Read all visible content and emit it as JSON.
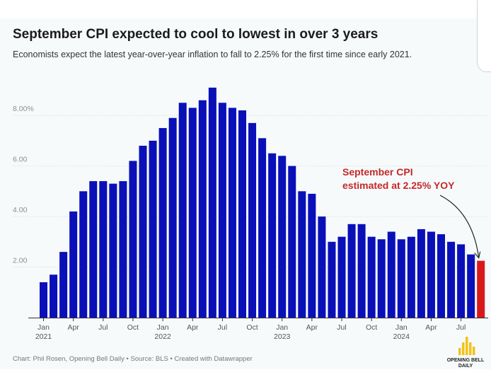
{
  "header": {
    "title": "September CPI expected to cool to lowest in over 3 years",
    "subtitle": "Economists expect the latest year-over-year inflation to fall to 2.25% for the first time since early 2021."
  },
  "footer": {
    "credit": "Chart: Phil Rosen, Opening Bell Daily • Source: BLS • Created with Datawrapper",
    "logo_text": "OPENING BELL DAILY"
  },
  "colors": {
    "bar": "#0a10b8",
    "highlight": "#d7191c",
    "annotation": "#c62828"
  },
  "chart_data": {
    "type": "bar",
    "ylim": [
      0,
      9.6
    ],
    "y_ticks": [
      {
        "value": 2,
        "label": "2.00"
      },
      {
        "value": 4,
        "label": "4.00"
      },
      {
        "value": 6,
        "label": "6.00"
      },
      {
        "value": 8,
        "label": "8.00%"
      }
    ],
    "x_ticks": [
      {
        "index": 0,
        "label": "Jan",
        "year": "2021"
      },
      {
        "index": 3,
        "label": "Apr"
      },
      {
        "index": 6,
        "label": "Jul"
      },
      {
        "index": 9,
        "label": "Oct"
      },
      {
        "index": 12,
        "label": "Jan",
        "year": "2022"
      },
      {
        "index": 15,
        "label": "Apr"
      },
      {
        "index": 18,
        "label": "Jul"
      },
      {
        "index": 21,
        "label": "Oct"
      },
      {
        "index": 24,
        "label": "Jan",
        "year": "2023"
      },
      {
        "index": 27,
        "label": "Apr"
      },
      {
        "index": 30,
        "label": "Jul"
      },
      {
        "index": 33,
        "label": "Oct"
      },
      {
        "index": 36,
        "label": "Jan",
        "year": "2024"
      },
      {
        "index": 39,
        "label": "Apr"
      },
      {
        "index": 42,
        "label": "Jul"
      }
    ],
    "categories": [
      "2021-01",
      "2021-02",
      "2021-03",
      "2021-04",
      "2021-05",
      "2021-06",
      "2021-07",
      "2021-08",
      "2021-09",
      "2021-10",
      "2021-11",
      "2021-12",
      "2022-01",
      "2022-02",
      "2022-03",
      "2022-04",
      "2022-05",
      "2022-06",
      "2022-07",
      "2022-08",
      "2022-09",
      "2022-10",
      "2022-11",
      "2022-12",
      "2023-01",
      "2023-02",
      "2023-03",
      "2023-04",
      "2023-05",
      "2023-06",
      "2023-07",
      "2023-08",
      "2023-09",
      "2023-10",
      "2023-11",
      "2023-12",
      "2024-01",
      "2024-02",
      "2024-03",
      "2024-04",
      "2024-05",
      "2024-06",
      "2024-07",
      "2024-08",
      "2024-09"
    ],
    "values": [
      1.4,
      1.7,
      2.6,
      4.2,
      5.0,
      5.4,
      5.4,
      5.3,
      5.4,
      6.2,
      6.8,
      7.0,
      7.5,
      7.9,
      8.5,
      8.3,
      8.6,
      9.1,
      8.5,
      8.3,
      8.2,
      7.7,
      7.1,
      6.5,
      6.4,
      6.0,
      5.0,
      4.9,
      4.0,
      3.0,
      3.2,
      3.7,
      3.7,
      3.2,
      3.1,
      3.4,
      3.1,
      3.2,
      3.5,
      3.4,
      3.3,
      3.0,
      2.9,
      2.5,
      2.25
    ],
    "highlight_index": 44,
    "annotation": {
      "line1": "September CPI",
      "line2": "estimated at 2.25% YOY"
    }
  }
}
